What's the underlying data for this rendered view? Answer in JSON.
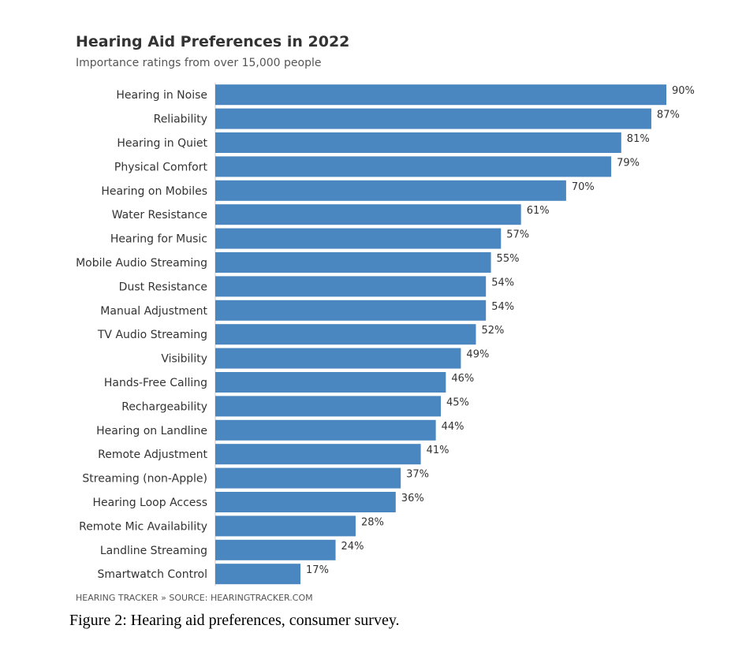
{
  "chart_data": {
    "type": "bar",
    "orientation": "horizontal",
    "title": "Hearing Aid Preferences in 2022",
    "subtitle": "Importance ratings from over 15,000 people",
    "categories": [
      "Hearing in Noise",
      "Reliability",
      "Hearing in Quiet",
      "Physical Comfort",
      "Hearing on Mobiles",
      "Water Resistance",
      "Hearing for Music",
      "Mobile Audio Streaming",
      "Dust Resistance",
      "Manual Adjustment",
      "TV Audio Streaming",
      "Visibility",
      "Hands-Free Calling",
      "Rechargeability",
      "Hearing on Landline",
      "Remote Adjustment",
      "Streaming (non-Apple)",
      "Hearing Loop Access",
      "Remote Mic Availability",
      "Landline Streaming",
      "Smartwatch Control"
    ],
    "values": [
      90,
      87,
      81,
      79,
      70,
      61,
      57,
      55,
      54,
      54,
      52,
      49,
      46,
      45,
      44,
      41,
      37,
      36,
      28,
      24,
      17
    ],
    "value_labels": [
      "90%",
      "87%",
      "81%",
      "79%",
      "70%",
      "61%",
      "57%",
      "55%",
      "54%",
      "54%",
      "52%",
      "49%",
      "46%",
      "45%",
      "44%",
      "41%",
      "37%",
      "36%",
      "28%",
      "24%",
      "17%"
    ],
    "unit": "%",
    "xlim": [
      0,
      90
    ],
    "grid": false,
    "bar_color": "#4a86c0"
  },
  "source": "HEARING TRACKER » SOURCE: HEARINGTRACKER.COM",
  "caption": "Figure 2: Hearing aid preferences, consumer survey."
}
